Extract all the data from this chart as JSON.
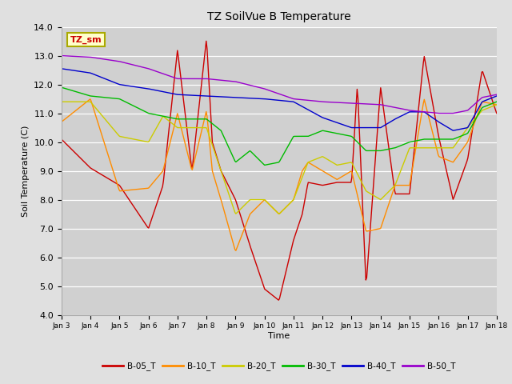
{
  "title": "TZ SoilVue B Temperature",
  "ylabel": "Soil Temperature (C)",
  "xlabel": "Time",
  "annotation": "TZ_sm",
  "ylim": [
    4.0,
    14.0
  ],
  "yticks": [
    4.0,
    5.0,
    6.0,
    7.0,
    8.0,
    9.0,
    10.0,
    11.0,
    12.0,
    13.0,
    14.0
  ],
  "fig_bg_color": "#e0e0e0",
  "plot_bg_color": "#d0d0d0",
  "series": [
    {
      "label": "B-05_T",
      "color": "#cc0000"
    },
    {
      "label": "B-10_T",
      "color": "#ff8c00"
    },
    {
      "label": "B-20_T",
      "color": "#cccc00"
    },
    {
      "label": "B-30_T",
      "color": "#00bb00"
    },
    {
      "label": "B-40_T",
      "color": "#0000cc"
    },
    {
      "label": "B-50_T",
      "color": "#9900cc"
    }
  ],
  "xtick_labels": [
    "Jan 3",
    "Jan 4",
    "Jan 5",
    "Jan 6",
    "Jan 7",
    "Jan 8",
    "Jan 9",
    "Jan 10",
    "Jan 11",
    "Jan 12",
    "Jan 13",
    "Jan 14",
    "Jan 15",
    "Jan 16",
    "Jan 17",
    "Jan 18"
  ]
}
